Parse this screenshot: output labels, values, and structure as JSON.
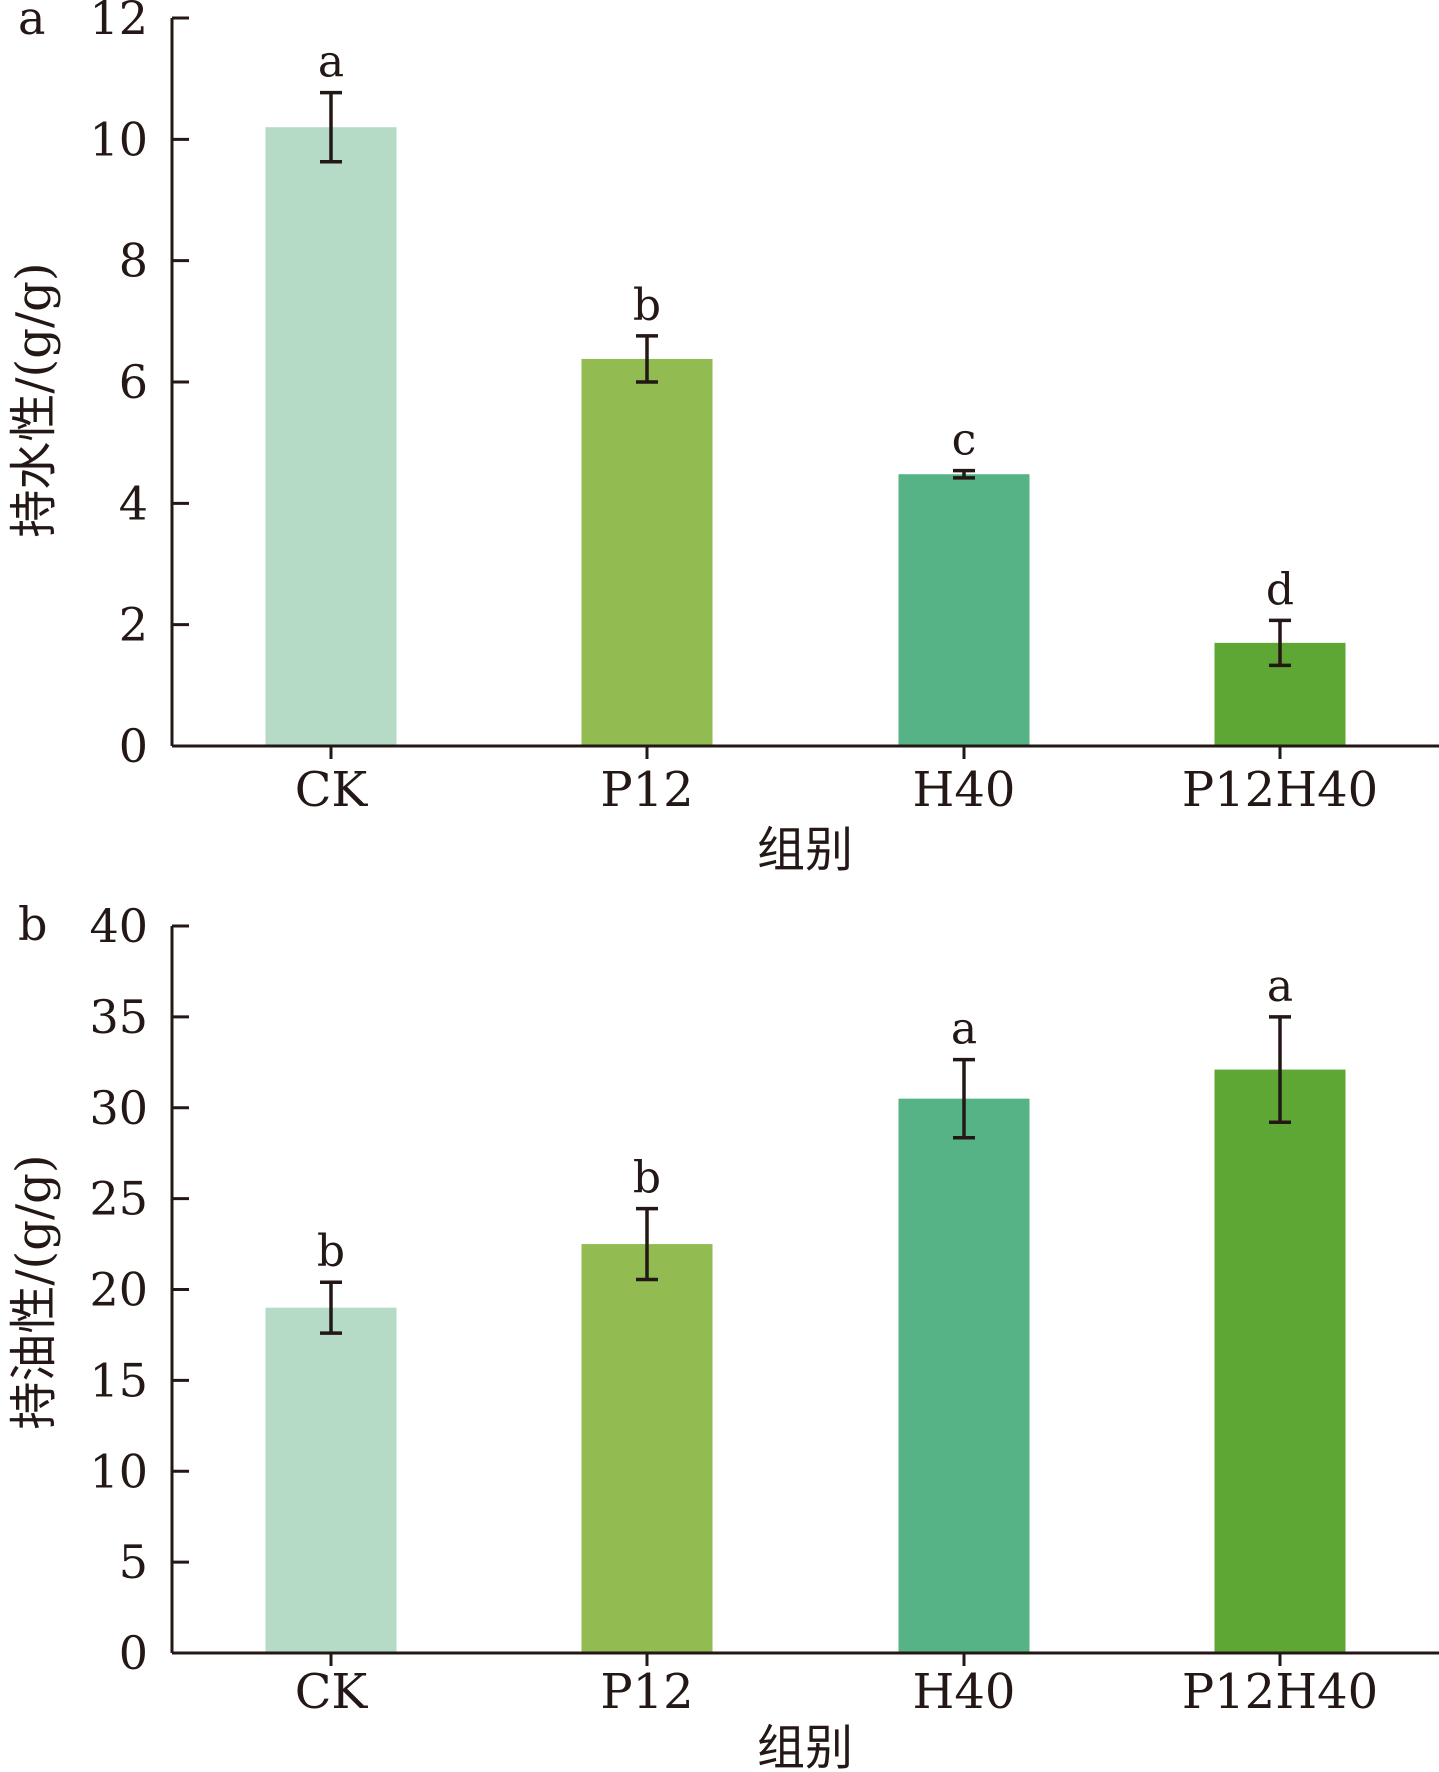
{
  "chart_data": [
    {
      "type": "bar",
      "panel_label": "a",
      "categories": [
        "CK",
        "P12",
        "H40",
        "P12H40"
      ],
      "values": [
        10.2,
        6.38,
        4.48,
        1.7
      ],
      "errors": [
        0.57,
        0.38,
        0.06,
        0.37
      ],
      "significance": [
        "a",
        "b",
        "c",
        "d"
      ],
      "colors": [
        "#b5dbc6",
        "#92bb52",
        "#55b386",
        "#5ea735"
      ],
      "xlabel": "组别",
      "ylabel": "持水性/(g/g)",
      "ylim": [
        0,
        12
      ],
      "yticks": [
        "0",
        "2",
        "4",
        "6",
        "8",
        "10",
        "12"
      ],
      "grid": false
    },
    {
      "type": "bar",
      "panel_label": "b",
      "categories": [
        "CK",
        "P12",
        "H40",
        "P12H40"
      ],
      "values": [
        19.0,
        22.5,
        30.5,
        32.1
      ],
      "errors": [
        1.4,
        1.95,
        2.15,
        2.9
      ],
      "significance": [
        "b",
        "b",
        "a",
        "a"
      ],
      "colors": [
        "#b5dbc6",
        "#92bb52",
        "#55b386",
        "#5ea735"
      ],
      "xlabel": "组别",
      "ylabel": "持油性/(g/g)",
      "ylim": [
        0,
        40
      ],
      "yticks": [
        "0",
        "5",
        "10",
        "15",
        "20",
        "25",
        "30",
        "35",
        "40"
      ],
      "grid": false
    }
  ]
}
